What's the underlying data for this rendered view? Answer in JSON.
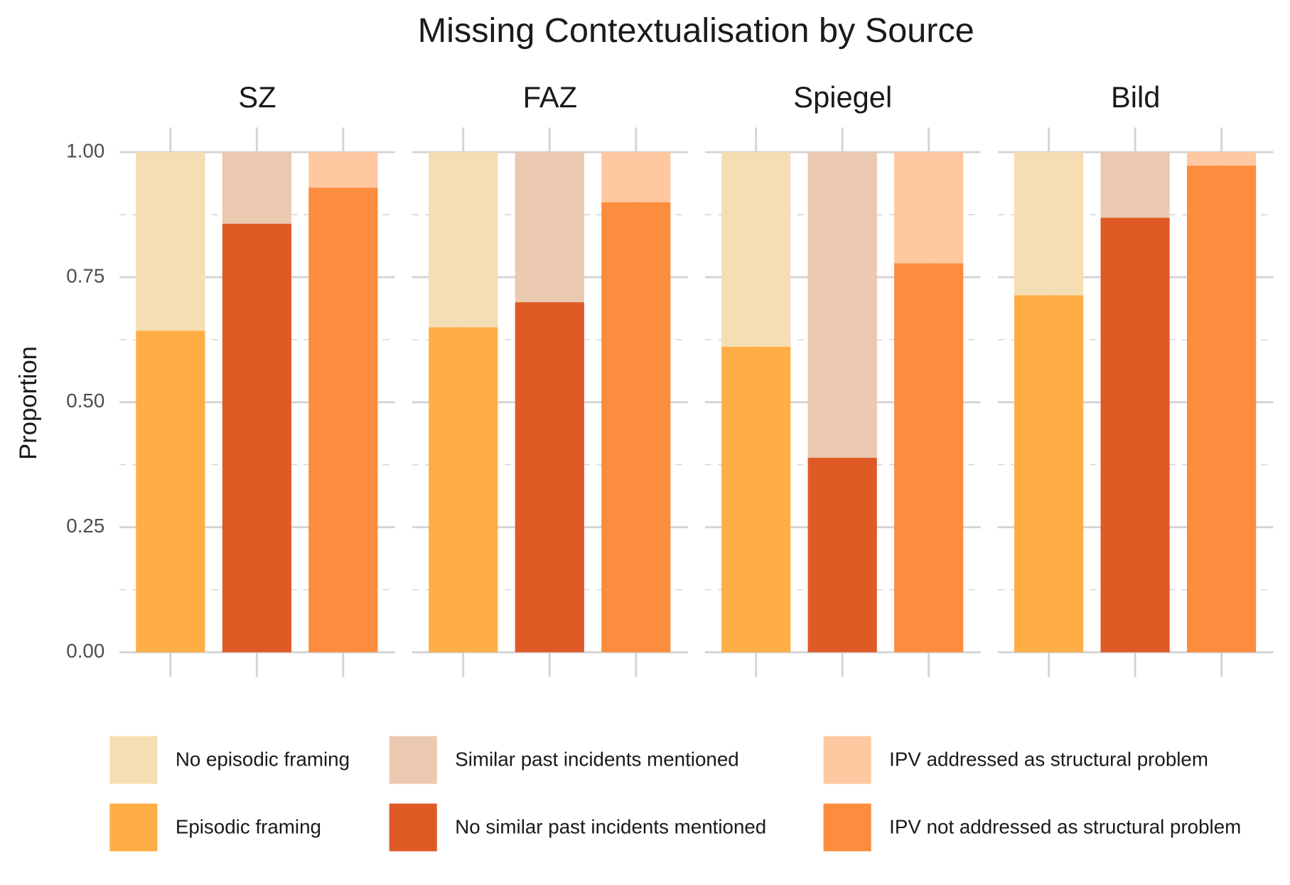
{
  "chart_data": {
    "type": "bar",
    "stacked": true,
    "title": "Missing Contextualisation by Source",
    "ylabel": "Proportion",
    "facets": [
      "SZ",
      "FAZ",
      "Spiegel",
      "Bild"
    ],
    "ylim": [
      0,
      1
    ],
    "yticks": [
      {
        "value": 0,
        "label": "0.00"
      },
      {
        "value": 0.25,
        "label": "0.25"
      },
      {
        "value": 0.5,
        "label": "0.50"
      },
      {
        "value": 0.75,
        "label": "0.75"
      },
      {
        "value": 1,
        "label": "1.00"
      }
    ],
    "grid": true,
    "legend": "bottom",
    "bars": [
      {
        "series": [
          {
            "name": "Episodic framing",
            "color": "#ffad45",
            "values": [
              0.643,
              0.65,
              0.611,
              0.714
            ]
          },
          {
            "name": "No episodic framing",
            "color": "#f5deb3",
            "values": [
              0.357,
              0.35,
              0.389,
              0.286
            ]
          }
        ]
      },
      {
        "series": [
          {
            "name": "No similar past incidents mentioned",
            "color": "#e05a25",
            "values": [
              0.857,
              0.7,
              0.389,
              0.869
            ]
          },
          {
            "name": "Similar past incidents mentioned",
            "color": "#ebc8b0",
            "values": [
              0.143,
              0.3,
              0.611,
              0.131
            ]
          }
        ]
      },
      {
        "series": [
          {
            "name": "IPV not addressed as structural problem",
            "color": "#fc8c3e",
            "values": [
              0.929,
              0.9,
              0.778,
              0.973
            ]
          },
          {
            "name": "IPV addressed as structural problem",
            "color": "#ffc8a0",
            "values": [
              0.071,
              0.1,
              0.222,
              0.027
            ]
          }
        ]
      }
    ]
  }
}
